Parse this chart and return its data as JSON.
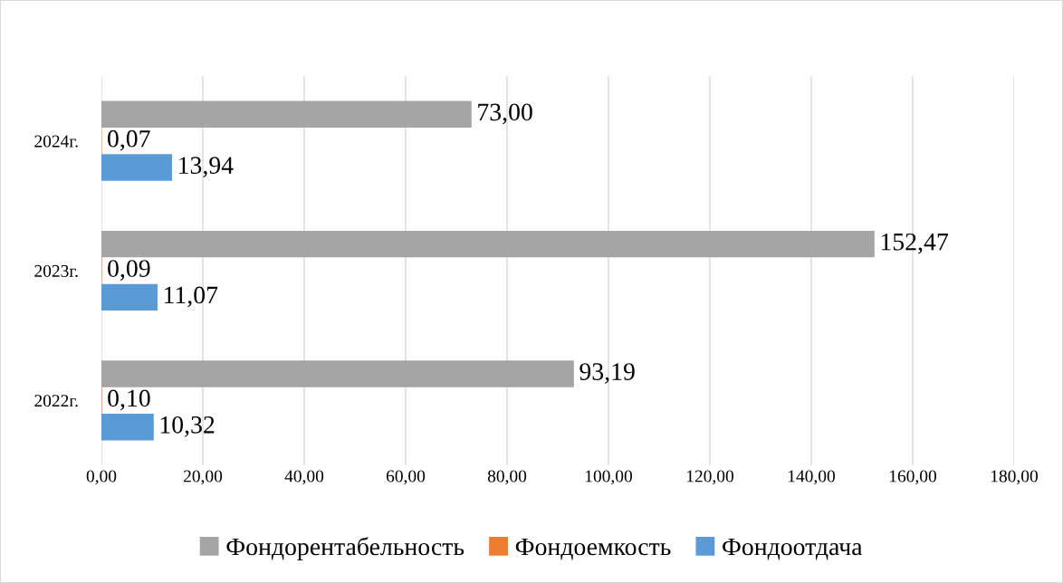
{
  "chart_data": {
    "type": "bar",
    "orientation": "horizontal",
    "categories": [
      "2024г.",
      "2023г.",
      "2022г."
    ],
    "series": [
      {
        "name": "Фондорентабельность",
        "color": "#a5a5a5",
        "values": [
          73.0,
          152.47,
          93.19
        ],
        "value_labels": [
          "73,00",
          "152,47",
          "93,19"
        ]
      },
      {
        "name": "Фондоемкость",
        "color": "#ed7d31",
        "values": [
          0.07,
          0.09,
          0.1
        ],
        "value_labels": [
          "0,07",
          "0,09",
          "0,10"
        ]
      },
      {
        "name": "Фондоотдача",
        "color": "#5b9bd5",
        "values": [
          13.94,
          11.07,
          10.32
        ],
        "value_labels": [
          "13,94",
          "11,07",
          "10,32"
        ]
      }
    ],
    "xlim": [
      0,
      180
    ],
    "xticks": [
      {
        "value": 0,
        "label": "0,00"
      },
      {
        "value": 20,
        "label": "20,00"
      },
      {
        "value": 40,
        "label": "40,00"
      },
      {
        "value": 60,
        "label": "60,00"
      },
      {
        "value": 80,
        "label": "80,00"
      },
      {
        "value": 100,
        "label": "100,00"
      },
      {
        "value": 120,
        "label": "120,00"
      },
      {
        "value": 140,
        "label": "140,00"
      },
      {
        "value": 160,
        "label": "160,00"
      },
      {
        "value": 180,
        "label": "180,00"
      }
    ],
    "grid": "x",
    "legend": "bottom"
  }
}
